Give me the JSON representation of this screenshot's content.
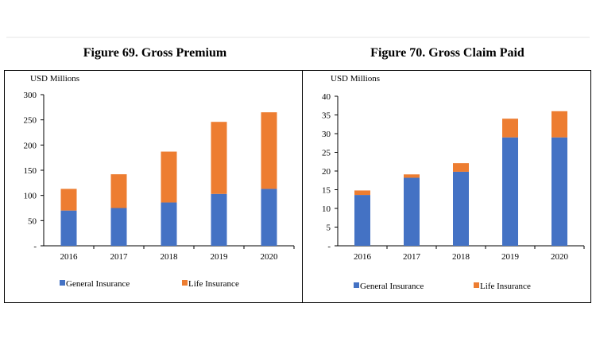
{
  "chart_data": [
    {
      "type": "bar",
      "stacked": true,
      "title": "Figure 69. Gross Premium",
      "unit_label": "USD Millions",
      "categories": [
        "2016",
        "2017",
        "2018",
        "2019",
        "2020"
      ],
      "series": [
        {
          "name": "General Insurance",
          "color": "#4472C4",
          "values": [
            70,
            75,
            86,
            103,
            113
          ]
        },
        {
          "name": "Life Insurance",
          "color": "#ED7D31",
          "values": [
            43,
            67,
            101,
            143,
            152
          ]
        }
      ],
      "ylim": [
        0,
        300
      ],
      "yticks": [
        "-",
        "50",
        "100",
        "150",
        "200",
        "250",
        "300"
      ],
      "legend": "bottom"
    },
    {
      "type": "bar",
      "stacked": true,
      "title": "Figure 70. Gross Claim Paid",
      "unit_label": "USD Millions",
      "categories": [
        "2016",
        "2017",
        "2018",
        "2019",
        "2020"
      ],
      "series": [
        {
          "name": "General Insurance",
          "color": "#4472C4",
          "values": [
            13.6,
            18.2,
            19.8,
            29.0,
            29.0
          ]
        },
        {
          "name": "Life Insurance",
          "color": "#ED7D31",
          "values": [
            1.2,
            0.9,
            2.3,
            5.0,
            7.0
          ]
        }
      ],
      "ylim": [
        0,
        40
      ],
      "yticks": [
        "-",
        "5",
        "10",
        "15",
        "20",
        "25",
        "30",
        "35",
        "40"
      ],
      "legend": "bottom"
    }
  ]
}
